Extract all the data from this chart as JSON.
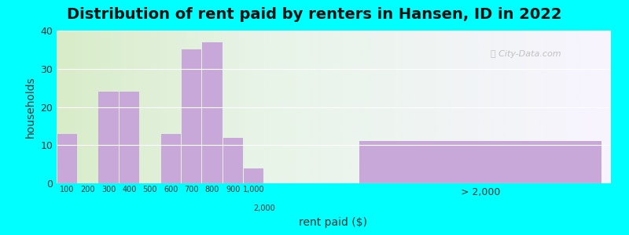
{
  "title": "Distribution of rent paid by renters in Hansen, ID in 2022",
  "xlabel": "rent paid ($)",
  "ylabel": "households",
  "bar_color": "#c8a8d8",
  "outer_bg": "#00ffff",
  "bg_left_color": "#d8ecc8",
  "bg_right_color": "#f0eeff",
  "ylim": [
    0,
    40
  ],
  "yticks": [
    0,
    10,
    20,
    30,
    40
  ],
  "categories_left": [
    "100",
    "200",
    "300",
    "400",
    "500",
    "600",
    "700",
    "800",
    "900",
    "1,000"
  ],
  "values_left": [
    13,
    0,
    24,
    24,
    0,
    13,
    35,
    37,
    12,
    4
  ],
  "label_2000": "2,000",
  "label_gt2000": "> 2,000",
  "value_gt2000": 11,
  "title_fontsize": 14,
  "axis_label_fontsize": 10
}
